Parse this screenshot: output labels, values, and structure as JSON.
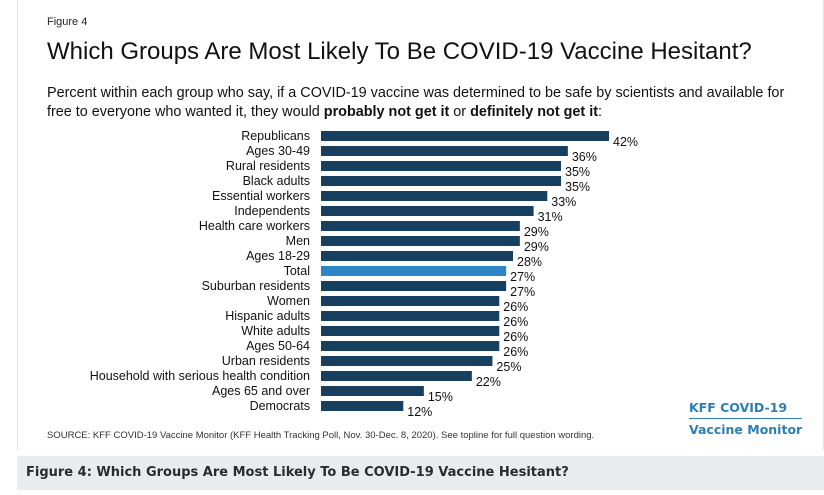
{
  "figure": {
    "label": "Figure 4",
    "title": "Which Groups Are Most Likely To Be COVID-19 Vaccine Hesitant?",
    "subtitle_pre": "Percent within each group who say, if a COVID-19 vaccine was determined to be safe by scientists and available for free to everyone who wanted it, they would ",
    "subtitle_b1": "probably not get it",
    "subtitle_mid": " or ",
    "subtitle_b2": "definitely not get it",
    "subtitle_end": ":",
    "source": "SOURCE: KFF COVID-19 Vaccine Monitor (KFF Health Tracking Poll, Nov. 30-Dec. 8, 2020). See topline for full question wording.",
    "brand_line1": "KFF COVID-19",
    "brand_line2": "Vaccine Monitor"
  },
  "caption": "Figure 4: Which Groups Are Most Likely To Be COVID-19 Vaccine Hesitant?",
  "colors": {
    "bar": "#173f5f",
    "highlight": "#2e86c8",
    "brand": "#2a7fb9"
  },
  "chart_data": {
    "type": "bar",
    "orientation": "horizontal",
    "categories": [
      "Republicans",
      "Ages 30-49",
      "Rural residents",
      "Black adults",
      "Essential workers",
      "Independents",
      "Health care workers",
      "Men",
      "Ages 18-29",
      "Total",
      "Suburban residents",
      "Women",
      "Hispanic adults",
      "White adults",
      "Ages 50-64",
      "Urban residents",
      "Household with serious health condition",
      "Ages 65 and over",
      "Democrats"
    ],
    "values": [
      42,
      36,
      35,
      35,
      33,
      31,
      29,
      29,
      28,
      27,
      27,
      26,
      26,
      26,
      26,
      25,
      22,
      15,
      12
    ],
    "value_labels": [
      "42%",
      "36%",
      "35%",
      "35%",
      "33%",
      "31%",
      "29%",
      "29%",
      "28%",
      "27%",
      "27%",
      "26%",
      "26%",
      "26%",
      "26%",
      "25%",
      "22%",
      "15%",
      "12%"
    ],
    "highlight": "Total",
    "xlim": [
      0,
      42
    ],
    "unit": "%"
  }
}
